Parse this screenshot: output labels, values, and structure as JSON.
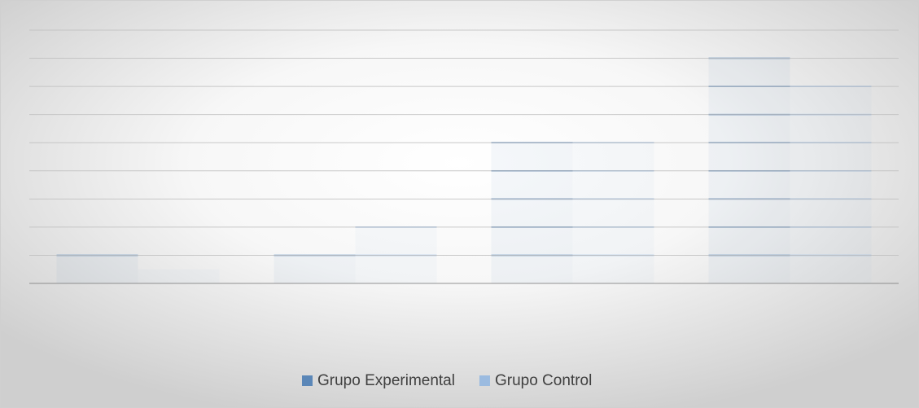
{
  "chart_data": {
    "type": "bar",
    "categories": [
      null,
      null,
      null,
      null
    ],
    "series": [
      {
        "name": "Grupo Experimental",
        "color": "#5b87b8",
        "values": [
          1,
          1,
          5,
          8
        ]
      },
      {
        "name": "Grupo Control",
        "color": "#9bbbe0",
        "values": [
          0.5,
          2,
          5,
          7
        ]
      }
    ],
    "ylim": [
      0,
      9
    ],
    "yticks": [
      0,
      1,
      2,
      3,
      4,
      5,
      6,
      7,
      8,
      9
    ],
    "grid": true,
    "legend": "bottom"
  }
}
